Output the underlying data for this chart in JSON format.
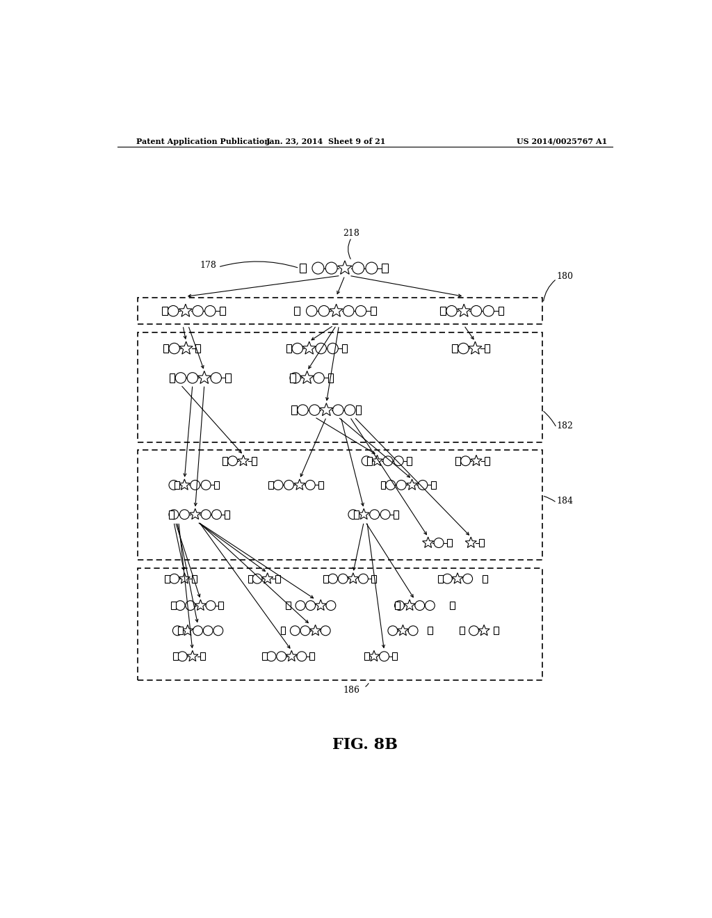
{
  "header_left": "Patent Application Publication",
  "header_mid": "Jan. 23, 2014  Sheet 9 of 21",
  "header_right": "US 2014/0025767 A1",
  "fig_label": "FIG. 8B",
  "background": "#ffffff",
  "lc": "#000000",
  "label_218": "218",
  "label_178": "178",
  "label_180": "180",
  "label_182": "182",
  "label_184": "184",
  "label_186": "186"
}
